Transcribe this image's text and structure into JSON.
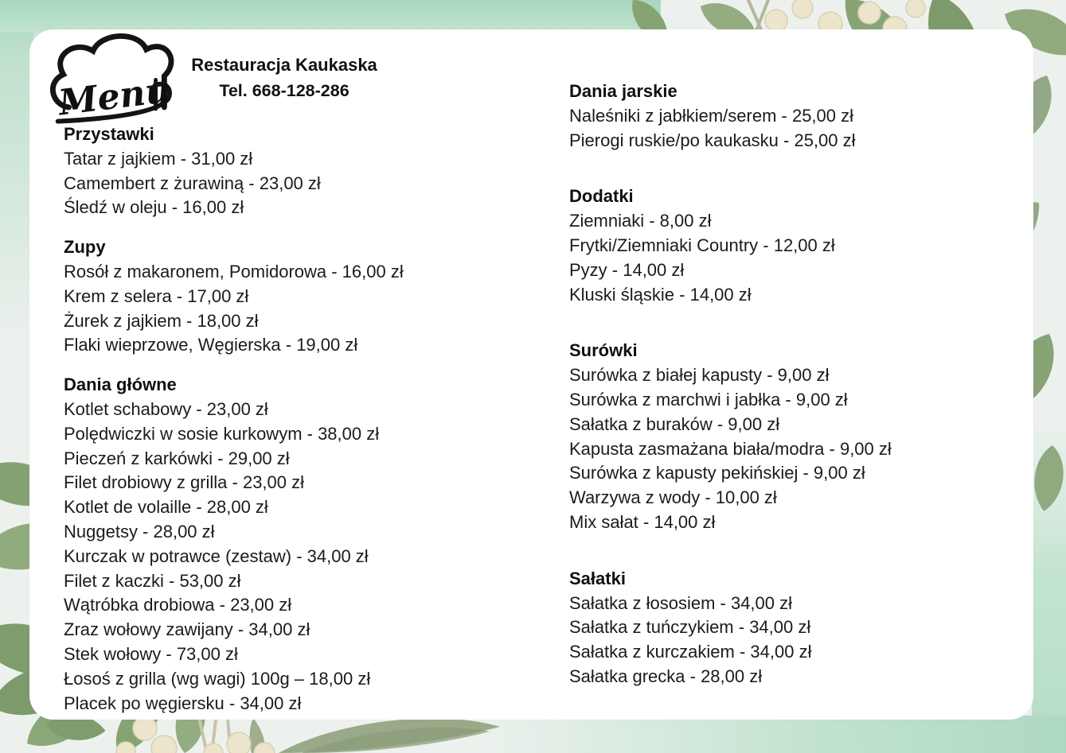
{
  "header": {
    "logo_text": "Menu",
    "restaurant_name": "Restauracja Kaukaska",
    "phone": "Tel. 668-128-286"
  },
  "columns": [
    {
      "sections": [
        {
          "title": "Przystawki",
          "items": [
            "Tatar z jajkiem - 31,00 zł",
            "Camembert z żurawiną - 23,00 zł",
            "Śledź w oleju - 16,00 zł"
          ]
        },
        {
          "title": "Zupy",
          "items": [
            "Rosół z makaronem, Pomidorowa - 16,00 zł",
            "Krem z selera - 17,00 zł",
            "Żurek z jajkiem - 18,00 zł",
            "Flaki wieprzowe, Węgierska - 19,00 zł"
          ]
        },
        {
          "title": "Dania główne",
          "items": [
            "Kotlet schabowy - 23,00 zł",
            "Polędwiczki w sosie kurkowym - 38,00 zł",
            "Pieczeń z karkówki - 29,00 zł",
            "Filet drobiowy z grilla - 23,00 zł",
            "Kotlet de volaille - 28,00 zł",
            "Nuggetsy - 28,00 zł",
            "Kurczak w potrawce (zestaw) - 34,00 zł",
            "Filet z kaczki - 53,00 zł",
            "Wątróbka drobiowa - 23,00 zł",
            "Zraz wołowy zawijany - 34,00 zł",
            "Stek wołowy - 73,00 zł",
            "Łosoś z grilla (wg wagi) 100g – 18,00 zł",
            "Placek po węgiersku - 34,00 zł"
          ]
        }
      ]
    },
    {
      "sections": [
        {
          "title": "Dania jarskie",
          "items": [
            "Naleśniki z jabłkiem/serem - 25,00 zł",
            "Pierogi ruskie/po kaukasku - 25,00 zł"
          ]
        },
        {
          "title": "Dodatki",
          "items": [
            "Ziemniaki - 8,00 zł",
            "Frytki/Ziemniaki Country - 12,00 zł",
            "Pyzy - 14,00 zł",
            "Kluski śląskie - 14,00 zł"
          ]
        },
        {
          "title": "Surówki",
          "items": [
            "Surówka z białej kapusty - 9,00 zł",
            "Surówka z marchwi i jabłka - 9,00 zł",
            "Sałatka z buraków - 9,00 zł",
            "Kapusta zasmażana biała/modra - 9,00 zł",
            "Surówka z kapusty pekińskiej - 9,00 zł",
            "Warzywa z wody - 10,00 zł",
            "Mix sałat - 14,00 zł"
          ]
        },
        {
          "title": "Sałatki",
          "items": [
            "Sałatka z łososiem - 34,00 zł",
            "Sałatka z tuńczykiem - 34,00 zł",
            "Sałatka z kurczakiem - 34,00 zł",
            "Sałatka grecka - 28,00 zł"
          ]
        }
      ]
    }
  ],
  "colors": {
    "card_background": "#ffffff",
    "page_background": "#edf1ee",
    "mint_wash": "#b9dfc9",
    "leaf_green": "#8aa778",
    "leaf_dark": "#7c9a6a",
    "leaf_sage": "#9aaa88",
    "berry_cream": "#ece4cb",
    "text": "#1b1b1b"
  }
}
